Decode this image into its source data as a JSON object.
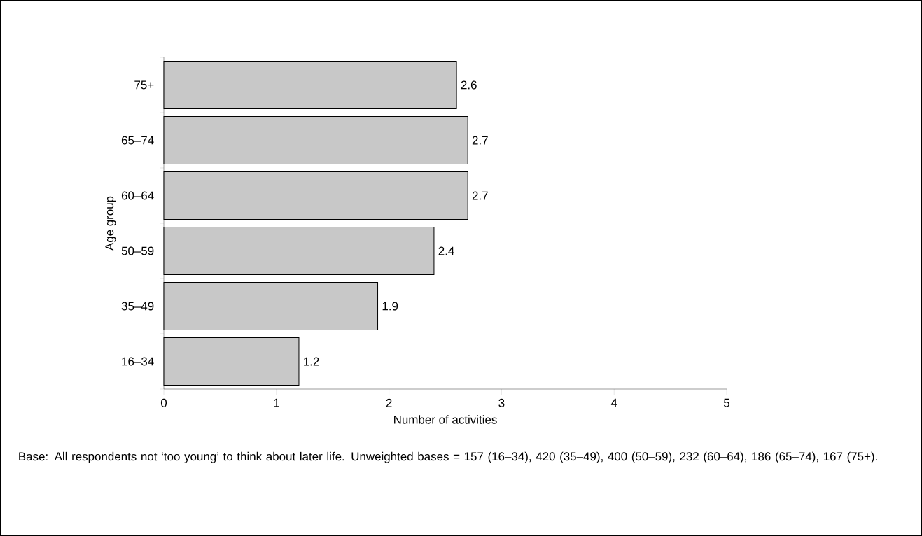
{
  "chart_data": {
    "type": "bar",
    "orientation": "horizontal",
    "categories": [
      "75+",
      "65–74",
      "60–64",
      "50–59",
      "35–49",
      "16–34"
    ],
    "values": [
      2.6,
      2.7,
      2.7,
      2.4,
      1.9,
      1.2
    ],
    "color": "#c8c8c8",
    "data_labels": true,
    "xlim": [
      0,
      5
    ],
    "xticks": [
      0,
      1,
      2,
      3,
      4,
      5
    ],
    "xlabel": "Number of activities",
    "ylabel": "Age group",
    "annotations": [
      "Base: All respondents not ‘too young’ to think about later life. Unweighted bases = 157 (16–34), 420 (35–49), 400 (50–59), 232 (60–64), 186 (65–74), 167 (75+)."
    ]
  }
}
